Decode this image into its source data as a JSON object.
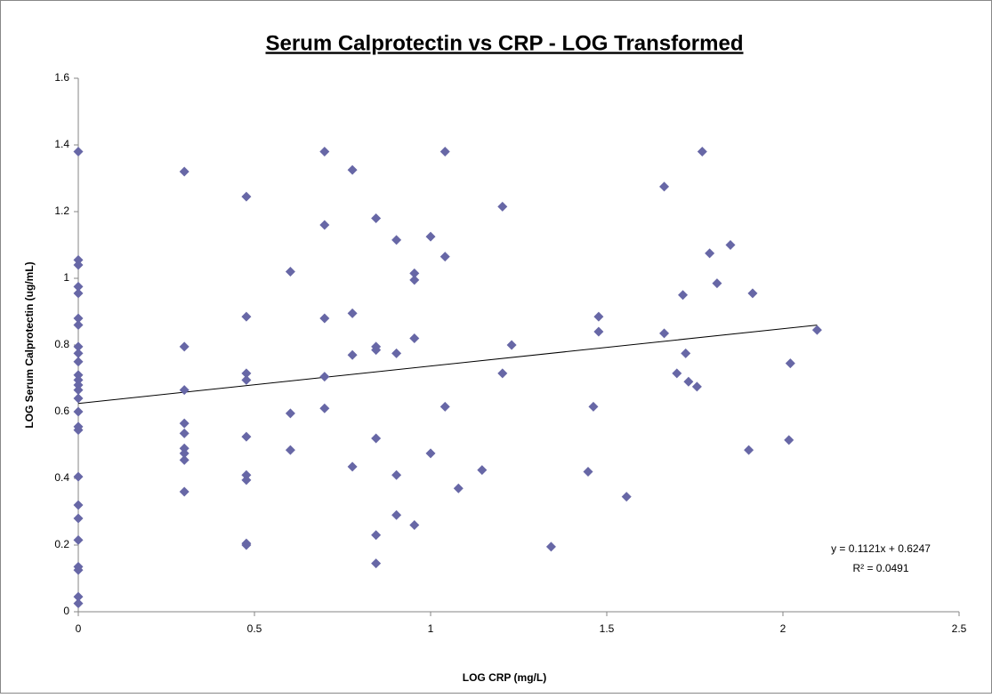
{
  "chart_data": {
    "type": "scatter",
    "title": "Serum Calprotectin vs CRP - LOG Transformed",
    "x_label": "LOG CRP (mg/L)",
    "y_label": "LOG Serum Calprotectin (ug/mL)",
    "color": "#6767a6",
    "x": [
      0,
      0,
      0,
      0,
      0,
      0,
      0,
      0,
      0,
      0,
      0,
      0,
      0,
      0,
      0,
      0,
      0,
      0,
      0,
      0,
      0,
      0,
      0,
      0,
      0,
      0,
      0.301,
      0.301,
      0.301,
      0.301,
      0.301,
      0.301,
      0.301,
      0.301,
      0.301,
      0.477,
      0.477,
      0.477,
      0.477,
      0.477,
      0.477,
      0.477,
      0.477,
      0.477,
      0.602,
      0.602,
      0.602,
      0.699,
      0.699,
      0.699,
      0.699,
      0.699,
      0.778,
      0.778,
      0.778,
      0.778,
      0.845,
      0.845,
      0.845,
      0.845,
      0.845,
      0.845,
      0.903,
      0.903,
      0.903,
      0.903,
      0.954,
      0.954,
      0.954,
      0.954,
      1,
      1,
      1.041,
      1.041,
      1.041,
      1.079,
      1.146,
      1.204,
      1.204,
      1.23,
      1.342,
      1.447,
      1.462,
      1.477,
      1.477,
      1.556,
      1.663,
      1.663,
      1.699,
      1.716,
      1.724,
      1.732,
      1.756,
      1.771,
      1.792,
      1.813,
      1.851,
      1.903,
      1.914,
      2.017,
      2.021,
      2.097
    ],
    "values": [
      1.38,
      1.055,
      1.04,
      0.975,
      0.955,
      0.88,
      0.86,
      0.795,
      0.775,
      0.75,
      0.71,
      0.695,
      0.68,
      0.665,
      0.64,
      0.6,
      0.555,
      0.545,
      0.405,
      0.32,
      0.28,
      0.215,
      0.135,
      0.125,
      0.045,
      0.025,
      1.32,
      0.795,
      0.665,
      0.565,
      0.535,
      0.49,
      0.475,
      0.455,
      0.36,
      1.245,
      0.885,
      0.715,
      0.695,
      0.525,
      0.41,
      0.395,
      0.205,
      0.2,
      1.02,
      0.595,
      0.485,
      1.38,
      1.16,
      0.88,
      0.705,
      0.61,
      1.325,
      0.895,
      0.77,
      0.435,
      1.18,
      0.795,
      0.785,
      0.52,
      0.23,
      0.145,
      1.115,
      0.775,
      0.41,
      0.29,
      1.015,
      0.995,
      0.82,
      0.26,
      1.125,
      0.475,
      1.38,
      1.065,
      0.615,
      0.37,
      0.425,
      1.215,
      0.715,
      0.8,
      0.195,
      0.42,
      0.615,
      0.885,
      0.84,
      0.345,
      1.275,
      0.835,
      0.715,
      0.95,
      0.775,
      0.69,
      0.675,
      1.38,
      1.075,
      0.985,
      1.1,
      0.485,
      0.955,
      0.515,
      0.745,
      0.845
    ],
    "trendline": {
      "slope": 0.1121,
      "intercept": 0.6247,
      "equation": "y = 0.1121x + 0.6247",
      "r2_label": "R² = 0.0491"
    },
    "xlim": [
      0,
      2.5
    ],
    "xticks": [
      0,
      0.5,
      1,
      1.5,
      2,
      2.5
    ],
    "ylim": [
      0,
      1.6
    ],
    "yticks": [
      0,
      0.2,
      0.4,
      0.6,
      0.8,
      1,
      1.2,
      1.4,
      1.6
    ],
    "grid": false
  }
}
